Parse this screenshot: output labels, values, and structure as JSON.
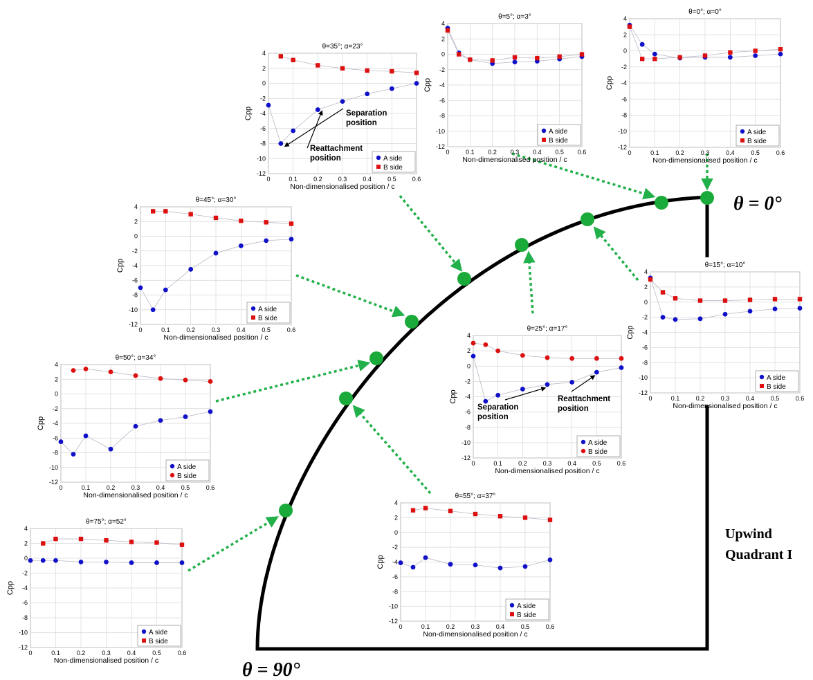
{
  "labels": {
    "theta0": "θ = 0°",
    "theta90": "θ = 90°",
    "quadrant_line1": "Upwind",
    "quadrant_line2": "Quadrant I"
  },
  "colors": {
    "a_side": "#1010c8",
    "b_side": "#dd1010",
    "marker": "#1aaa3a",
    "arrow": "#22b04a",
    "grid": "#d8d8d8"
  },
  "chart_data": [
    {
      "type": "line",
      "title": "θ=0°; α=0°",
      "xlabel": "Non-dimensionalised position / c",
      "ylabel": "Cpp",
      "xlim": [
        0,
        0.6
      ],
      "ylim": [
        -12,
        4
      ],
      "xticks": [
        "0",
        "0.1",
        "0.2",
        "0.3",
        "0.4",
        "0.5",
        "0.6"
      ],
      "yticks": [
        "4",
        "2",
        "0",
        "-2",
        "-4",
        "-6",
        "-8",
        "-10",
        "-12"
      ],
      "legend": "bottom-right",
      "series": [
        {
          "name": "A side",
          "marker": "circle",
          "x": [
            0.0,
            0.05,
            0.1,
            0.2,
            0.3,
            0.4,
            0.5,
            0.6
          ],
          "y": [
            3.2,
            0.8,
            -0.4,
            -0.9,
            -0.8,
            -0.8,
            -0.6,
            -0.4
          ]
        },
        {
          "name": "B side",
          "marker": "square",
          "x": [
            0.0,
            0.05,
            0.1,
            0.2,
            0.3,
            0.4,
            0.5,
            0.6
          ],
          "y": [
            3.0,
            -1.0,
            -1.0,
            -0.8,
            -0.6,
            -0.2,
            0.0,
            0.2
          ]
        }
      ]
    },
    {
      "type": "line",
      "title": "θ=5°; α=3°",
      "xlabel": "Non-dimensionalised position / c",
      "ylabel": "Cpp",
      "xlim": [
        0,
        0.6
      ],
      "ylim": [
        -12,
        4
      ],
      "xticks": [
        "0",
        "0.1",
        "0.2",
        "0.3",
        "0.4",
        "0.5",
        "0.6"
      ],
      "yticks": [
        "4",
        "2",
        "0",
        "-2",
        "-4",
        "-6",
        "-8",
        "-10",
        "-12"
      ],
      "legend": "bottom-right",
      "series": [
        {
          "name": "A side",
          "marker": "circle",
          "x": [
            0.0,
            0.05,
            0.1,
            0.2,
            0.3,
            0.4,
            0.5,
            0.6
          ],
          "y": [
            3.4,
            0.2,
            -0.7,
            -1.2,
            -1.0,
            -0.9,
            -0.6,
            -0.3
          ]
        },
        {
          "name": "B side",
          "marker": "square",
          "x": [
            0.0,
            0.05,
            0.1,
            0.2,
            0.3,
            0.4,
            0.5,
            0.6
          ],
          "y": [
            3.1,
            0.0,
            -0.7,
            -0.8,
            -0.4,
            -0.5,
            -0.3,
            0.0
          ]
        }
      ]
    },
    {
      "type": "line",
      "title": "θ=15°; α=10°",
      "xlabel": "Non-dimensionalised position / c",
      "ylabel": "Cpp",
      "xlim": [
        0,
        0.6
      ],
      "ylim": [
        -12,
        4
      ],
      "xticks": [
        "0",
        "0.1",
        "0.2",
        "0.3",
        "0.4",
        "0.5",
        "0.6"
      ],
      "yticks": [
        "4",
        "2",
        "0",
        "-2",
        "-4",
        "-6",
        "-8",
        "-10",
        "-12"
      ],
      "legend": "bottom-right",
      "series": [
        {
          "name": "A side",
          "marker": "circle",
          "x": [
            0.0,
            0.05,
            0.1,
            0.2,
            0.3,
            0.4,
            0.5,
            0.6
          ],
          "y": [
            3.2,
            -2.0,
            -2.3,
            -2.2,
            -1.6,
            -1.2,
            -0.9,
            -0.8
          ]
        },
        {
          "name": "B side",
          "marker": "square",
          "x": [
            0.0,
            0.05,
            0.1,
            0.2,
            0.3,
            0.4,
            0.5,
            0.6
          ],
          "y": [
            3.0,
            1.3,
            0.5,
            0.2,
            0.2,
            0.3,
            0.4,
            0.4
          ]
        }
      ]
    },
    {
      "type": "line",
      "title": "θ=25°; α=17°",
      "xlabel": "Non-dimensionalised position / c",
      "ylabel": "Cpp",
      "xlim": [
        0,
        0.6
      ],
      "ylim": [
        -12,
        4
      ],
      "xticks": [
        "0",
        "0.1",
        "0.2",
        "0.3",
        "0.4",
        "0.5",
        "0.6"
      ],
      "yticks": [
        "4",
        "2",
        "0",
        "-2",
        "-4",
        "-6",
        "-8",
        "-10",
        "-12"
      ],
      "legend": "bottom-right",
      "annotations": [
        {
          "text": [
            "Separation",
            "position"
          ],
          "series": 0,
          "index": 4
        },
        {
          "text": [
            "Reattachment",
            "position"
          ],
          "series": 0,
          "index": 6
        }
      ],
      "series": [
        {
          "name": "A side",
          "marker": "circle",
          "x": [
            0.0,
            0.05,
            0.1,
            0.2,
            0.3,
            0.4,
            0.5,
            0.6
          ],
          "y": [
            1.3,
            -4.6,
            -3.8,
            -3.0,
            -2.4,
            -2.1,
            -0.8,
            -0.2
          ]
        },
        {
          "name": "B side",
          "marker": "circle",
          "x": [
            0.0,
            0.05,
            0.1,
            0.2,
            0.3,
            0.4,
            0.5,
            0.6
          ],
          "y": [
            3.0,
            2.8,
            2.0,
            1.4,
            1.1,
            1.0,
            1.0,
            1.0
          ]
        }
      ]
    },
    {
      "type": "line",
      "title": "θ=35°; α=23°",
      "xlabel": "Non-dimensionalised position / c",
      "ylabel": "Cpp",
      "xlim": [
        0,
        0.6
      ],
      "ylim": [
        -12,
        4
      ],
      "xticks": [
        "0",
        "0.1",
        "0.2",
        "0.3",
        "0.4",
        "0.5",
        "0.6"
      ],
      "yticks": [
        "4",
        "2",
        "0",
        "-2",
        "-4",
        "-6",
        "-8",
        "-10",
        "-12"
      ],
      "legend": "bottom-right",
      "annotations": [
        {
          "text": [
            "Reattachment",
            "position"
          ],
          "series": 0,
          "index": 3
        },
        {
          "text": [
            "Separation",
            "position"
          ],
          "series": 0,
          "index": 1
        }
      ],
      "series": [
        {
          "name": "A side",
          "marker": "circle",
          "x": [
            0.0,
            0.05,
            0.1,
            0.2,
            0.3,
            0.4,
            0.5,
            0.6
          ],
          "y": [
            -2.9,
            -8.0,
            -6.3,
            -3.5,
            -2.4,
            -1.4,
            -0.7,
            0.0
          ]
        },
        {
          "name": "B side",
          "marker": "square",
          "x": [
            0.05,
            0.1,
            0.2,
            0.3,
            0.4,
            0.5,
            0.6
          ],
          "y": [
            3.6,
            3.1,
            2.4,
            2.0,
            1.7,
            1.6,
            1.4
          ]
        }
      ]
    },
    {
      "type": "line",
      "title": "θ=45°; α=30°",
      "xlabel": "Non-dimensionalised position / c",
      "ylabel": "Cpp",
      "xlim": [
        0,
        0.6
      ],
      "ylim": [
        -12,
        4
      ],
      "xticks": [
        "0",
        "0.1",
        "0.2",
        "0.3",
        "0.4",
        "0.5",
        "0.6"
      ],
      "yticks": [
        "4",
        "2",
        "0",
        "-2",
        "-4",
        "-6",
        "-8",
        "-10",
        "-12"
      ],
      "legend": "bottom-right",
      "series": [
        {
          "name": "A side",
          "marker": "circle",
          "x": [
            0.0,
            0.05,
            0.1,
            0.2,
            0.3,
            0.4,
            0.5,
            0.6
          ],
          "y": [
            -7.0,
            -10.0,
            -7.3,
            -4.5,
            -2.3,
            -1.3,
            -0.6,
            -0.4
          ]
        },
        {
          "name": "B side",
          "marker": "square",
          "x": [
            0.05,
            0.1,
            0.2,
            0.3,
            0.4,
            0.5,
            0.6
          ],
          "y": [
            3.4,
            3.4,
            3.0,
            2.5,
            2.1,
            1.9,
            1.7
          ]
        }
      ]
    },
    {
      "type": "line",
      "title": "θ=50°; α=34°",
      "xlabel": "Non-dimensionalised position / c",
      "ylabel": "Cpp",
      "xlim": [
        0,
        0.6
      ],
      "ylim": [
        -12,
        4
      ],
      "xticks": [
        "0",
        "0.1",
        "0.2",
        "0.3",
        "0.4",
        "0.5",
        "0.6"
      ],
      "yticks": [
        "4",
        "2",
        "0",
        "-2",
        "-4",
        "-6",
        "-8",
        "-10",
        "-12"
      ],
      "legend": "bottom-right",
      "series": [
        {
          "name": "A side",
          "marker": "circle",
          "x": [
            0.0,
            0.05,
            0.1,
            0.2,
            0.3,
            0.4,
            0.5,
            0.6
          ],
          "y": [
            -6.5,
            -8.2,
            -5.7,
            -7.5,
            -4.4,
            -3.6,
            -3.1,
            -2.4
          ]
        },
        {
          "name": "B side",
          "marker": "circle",
          "x": [
            0.05,
            0.1,
            0.2,
            0.3,
            0.4,
            0.5,
            0.6
          ],
          "y": [
            3.2,
            3.4,
            3.0,
            2.5,
            2.1,
            1.9,
            1.7
          ]
        }
      ]
    },
    {
      "type": "line",
      "title": "θ=55°; α=37°",
      "xlabel": "Non-dimensionalised position / c",
      "ylabel": "Cpp",
      "xlim": [
        0,
        0.6
      ],
      "ylim": [
        -12,
        4
      ],
      "xticks": [
        "0",
        "0.1",
        "0.2",
        "0.3",
        "0.4",
        "0.5",
        "0.6"
      ],
      "yticks": [
        "4",
        "2",
        "0",
        "-2",
        "-4",
        "-6",
        "-8",
        "-10",
        "-12"
      ],
      "legend": "bottom-right",
      "series": [
        {
          "name": "A side",
          "marker": "circle",
          "x": [
            0.0,
            0.05,
            0.1,
            0.2,
            0.3,
            0.4,
            0.5,
            0.6
          ],
          "y": [
            -4.1,
            -4.7,
            -3.4,
            -4.3,
            -4.4,
            -4.8,
            -4.6,
            -3.7
          ]
        },
        {
          "name": "B side",
          "marker": "square",
          "x": [
            0.05,
            0.1,
            0.2,
            0.3,
            0.4,
            0.5,
            0.6
          ],
          "y": [
            3.0,
            3.3,
            2.9,
            2.5,
            2.2,
            2.0,
            1.7
          ]
        }
      ]
    },
    {
      "type": "line",
      "title": "θ=75°; α=52°",
      "xlabel": "Non-dimensionalised position / c",
      "ylabel": "Cpp",
      "xlim": [
        0,
        0.6
      ],
      "ylim": [
        -12,
        4
      ],
      "xticks": [
        "0",
        "0.1",
        "0.2",
        "0.3",
        "0.4",
        "0.5",
        "0.6"
      ],
      "yticks": [
        "4",
        "2",
        "0",
        "-2",
        "-4",
        "-6",
        "-8",
        "-10",
        "-12"
      ],
      "legend": "bottom-right",
      "series": [
        {
          "name": "A side",
          "marker": "circle",
          "x": [
            0.0,
            0.05,
            0.1,
            0.2,
            0.3,
            0.4,
            0.5,
            0.6
          ],
          "y": [
            -0.3,
            -0.3,
            -0.3,
            -0.5,
            -0.5,
            -0.6,
            -0.6,
            -0.6
          ]
        },
        {
          "name": "B side",
          "marker": "square",
          "x": [
            0.05,
            0.1,
            0.2,
            0.3,
            0.4,
            0.5,
            0.6
          ],
          "y": [
            2.0,
            2.6,
            2.6,
            2.4,
            2.2,
            2.1,
            1.8
          ]
        }
      ]
    }
  ]
}
